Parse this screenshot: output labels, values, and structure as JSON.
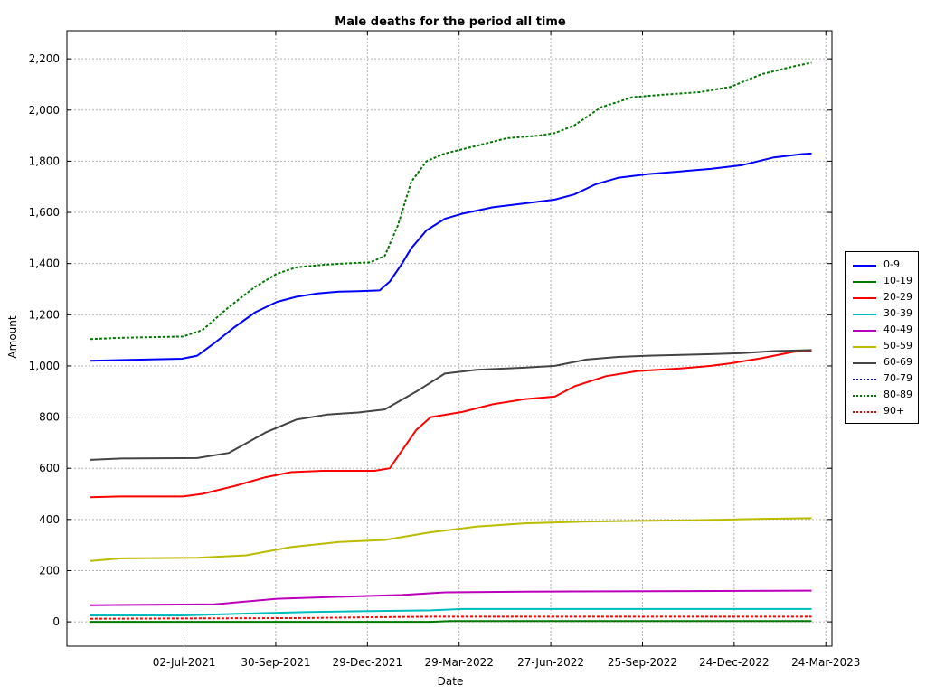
{
  "chart_data": {
    "type": "line",
    "title": "Male deaths for the period all time",
    "xlabel": "Date",
    "ylabel": "Amount",
    "x_range": [
      "2021-03-09",
      "2023-03-30"
    ],
    "ylim": [
      -95,
      2310
    ],
    "grid": true,
    "legend_placement": "right",
    "x_ticks": [
      {
        "date": "2021-07-02",
        "label": "02-Jul-2021"
      },
      {
        "date": "2021-09-30",
        "label": "30-Sep-2021"
      },
      {
        "date": "2021-12-29",
        "label": "29-Dec-2021"
      },
      {
        "date": "2022-03-29",
        "label": "29-Mar-2022"
      },
      {
        "date": "2022-06-27",
        "label": "27-Jun-2022"
      },
      {
        "date": "2022-09-25",
        "label": "25-Sep-2022"
      },
      {
        "date": "2022-12-24",
        "label": "24-Dec-2022"
      },
      {
        "date": "2023-03-24",
        "label": "24-Mar-2023"
      }
    ],
    "y_ticks": [
      {
        "value": 0,
        "label": "0"
      },
      {
        "value": 200,
        "label": "200"
      },
      {
        "value": 400,
        "label": "400"
      },
      {
        "value": 600,
        "label": "600"
      },
      {
        "value": 800,
        "label": "800"
      },
      {
        "value": 1000,
        "label": "1,000"
      },
      {
        "value": 1200,
        "label": "1,200"
      },
      {
        "value": 1400,
        "label": "1,400"
      },
      {
        "value": 1600,
        "label": "1,600"
      },
      {
        "value": 1800,
        "label": "1,800"
      },
      {
        "value": 2000,
        "label": "2,000"
      },
      {
        "value": 2200,
        "label": "2,200"
      }
    ],
    "series": [
      {
        "name": "0-9",
        "color": "#0000ff",
        "style": "solid",
        "x": [
          "2021-04-01",
          "2021-06-30",
          "2021-07-15",
          "2021-08-01",
          "2021-08-20",
          "2021-09-10",
          "2021-10-01",
          "2021-10-20",
          "2021-11-10",
          "2021-12-01",
          "2021-12-20",
          "2022-01-10",
          "2022-01-20",
          "2022-02-01",
          "2022-02-10",
          "2022-02-25",
          "2022-03-15",
          "2022-04-01",
          "2022-05-01",
          "2022-06-01",
          "2022-07-01",
          "2022-07-20",
          "2022-08-10",
          "2022-09-01",
          "2022-10-01",
          "2022-11-01",
          "2022-12-01",
          "2023-01-01",
          "2023-02-01",
          "2023-03-01",
          "2023-03-10"
        ],
        "y": [
          1020,
          1028,
          1040,
          1090,
          1150,
          1210,
          1250,
          1270,
          1283,
          1290,
          1292,
          1295,
          1330,
          1400,
          1460,
          1530,
          1575,
          1595,
          1620,
          1635,
          1650,
          1670,
          1710,
          1735,
          1750,
          1760,
          1770,
          1785,
          1815,
          1828,
          1830
        ]
      },
      {
        "name": "10-19",
        "color": "#007700",
        "style": "solid",
        "x": [
          "2021-04-01",
          "2022-03-01",
          "2022-03-20",
          "2023-03-10"
        ],
        "y": [
          0,
          0,
          3,
          3
        ]
      },
      {
        "name": "20-29",
        "color": "#ff0000",
        "style": "solid",
        "x": [
          "2021-04-01",
          "2021-05-01",
          "2021-07-01",
          "2021-07-20",
          "2021-08-20",
          "2021-09-20",
          "2021-10-15",
          "2021-11-15",
          "2022-01-05",
          "2022-01-20",
          "2022-02-01",
          "2022-02-15",
          "2022-03-01",
          "2022-04-01",
          "2022-05-01",
          "2022-06-01",
          "2022-07-01",
          "2022-07-20",
          "2022-08-20",
          "2022-09-20",
          "2022-11-01",
          "2022-12-01",
          "2022-12-20",
          "2023-01-20",
          "2023-02-20",
          "2023-03-10"
        ],
        "y": [
          487,
          490,
          490,
          500,
          530,
          565,
          585,
          590,
          590,
          600,
          670,
          750,
          800,
          820,
          850,
          870,
          880,
          920,
          960,
          980,
          990,
          1000,
          1010,
          1030,
          1055,
          1060
        ]
      },
      {
        "name": "30-39",
        "color": "#00bbbb",
        "style": "solid",
        "x": [
          "2021-04-01",
          "2021-07-01",
          "2021-09-01",
          "2021-11-01",
          "2022-01-01",
          "2022-03-01",
          "2022-04-01",
          "2023-03-10"
        ],
        "y": [
          25,
          25,
          32,
          38,
          42,
          45,
          50,
          50
        ]
      },
      {
        "name": "40-49",
        "color": "#bb00bb",
        "style": "solid",
        "x": [
          "2021-04-01",
          "2021-08-01",
          "2021-10-01",
          "2021-12-01",
          "2022-02-01",
          "2022-03-15",
          "2022-06-01",
          "2023-03-10"
        ],
        "y": [
          65,
          68,
          90,
          98,
          105,
          115,
          118,
          122
        ]
      },
      {
        "name": "50-59",
        "color": "#bbbb00",
        "style": "solid",
        "x": [
          "2021-04-01",
          "2021-05-01",
          "2021-07-15",
          "2021-09-01",
          "2021-10-15",
          "2021-12-01",
          "2022-01-15",
          "2022-03-01",
          "2022-04-15",
          "2022-06-01",
          "2022-08-01",
          "2022-10-01",
          "2022-12-01",
          "2023-01-15",
          "2023-03-10"
        ],
        "y": [
          238,
          248,
          250,
          260,
          292,
          312,
          320,
          350,
          372,
          385,
          392,
          395,
          398,
          402,
          405
        ]
      },
      {
        "name": "60-69",
        "color": "#444444",
        "style": "solid",
        "x": [
          "2021-04-01",
          "2021-05-01",
          "2021-07-15",
          "2021-08-15",
          "2021-09-20",
          "2021-10-20",
          "2021-11-20",
          "2021-12-20",
          "2022-01-15",
          "2022-02-15",
          "2022-03-15",
          "2022-04-15",
          "2022-06-01",
          "2022-07-01",
          "2022-08-01",
          "2022-09-01",
          "2022-10-01",
          "2022-11-01",
          "2022-12-01",
          "2023-01-01",
          "2023-02-01",
          "2023-03-10"
        ],
        "y": [
          633,
          638,
          640,
          660,
          740,
          790,
          810,
          818,
          830,
          900,
          970,
          985,
          993,
          1000,
          1025,
          1035,
          1040,
          1043,
          1046,
          1050,
          1058,
          1062
        ]
      },
      {
        "name": "70-79",
        "color": "#0000ff",
        "style": "dotted",
        "x": [],
        "y": []
      },
      {
        "name": "80-89",
        "color": "#007700",
        "style": "dotted",
        "x": [
          "2021-04-01",
          "2021-05-01",
          "2021-07-01",
          "2021-07-20",
          "2021-08-15",
          "2021-09-10",
          "2021-10-01",
          "2021-10-20",
          "2021-11-15",
          "2021-12-05",
          "2022-01-01",
          "2022-01-15",
          "2022-01-28",
          "2022-02-10",
          "2022-02-25",
          "2022-03-15",
          "2022-04-15",
          "2022-05-15",
          "2022-06-15",
          "2022-07-01",
          "2022-07-20",
          "2022-08-15",
          "2022-09-15",
          "2022-10-15",
          "2022-11-20",
          "2022-12-20",
          "2023-01-20",
          "2023-02-20",
          "2023-03-10"
        ],
        "y": [
          1105,
          1110,
          1115,
          1140,
          1230,
          1310,
          1360,
          1385,
          1395,
          1400,
          1405,
          1430,
          1550,
          1720,
          1800,
          1830,
          1860,
          1890,
          1900,
          1910,
          1940,
          2010,
          2050,
          2060,
          2070,
          2090,
          2140,
          2170,
          2185
        ]
      },
      {
        "name": "90+",
        "color": "#ff0000",
        "style": "dotted",
        "x": [
          "2021-04-01",
          "2021-11-01",
          "2022-01-01",
          "2022-03-01",
          "2023-03-10"
        ],
        "y": [
          12,
          15,
          18,
          20,
          20
        ]
      }
    ]
  }
}
